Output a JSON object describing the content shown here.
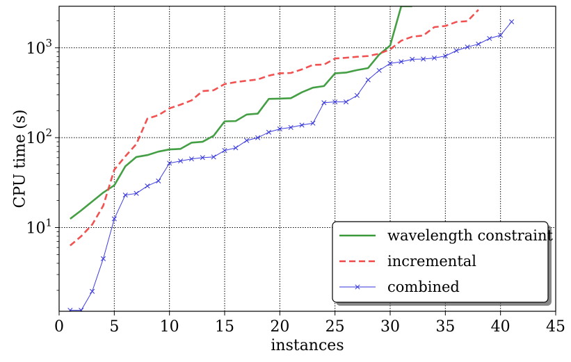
{
  "chart_data": {
    "type": "line",
    "title": "",
    "xlabel": "instances",
    "ylabel": "CPU time (s)",
    "xlim": [
      0,
      45
    ],
    "ylim": [
      1.17,
      2900
    ],
    "yscale": "log",
    "grid": true,
    "legend_position": "lower-right",
    "x_ticks": [
      0,
      5,
      10,
      15,
      20,
      25,
      30,
      35,
      40,
      45
    ],
    "y_ticks": [
      {
        "value": 10,
        "base": "10",
        "exp": "1"
      },
      {
        "value": 100,
        "base": "10",
        "exp": "2"
      },
      {
        "value": 1000,
        "base": "10",
        "exp": "3"
      }
    ],
    "series": [
      {
        "name": "wavelength constraint",
        "color": "#3a9a3a",
        "style": "solid",
        "marker": "none",
        "x": [
          1,
          2,
          3,
          4,
          5,
          6,
          7,
          8,
          9,
          10,
          11,
          12,
          13,
          14,
          15,
          16,
          17,
          18,
          19,
          20,
          21,
          22,
          23,
          24,
          25,
          26,
          27,
          28,
          29,
          30,
          31,
          32
        ],
        "y": [
          12.5,
          15.5,
          19.5,
          24.5,
          29.5,
          48,
          61,
          64,
          70,
          74,
          75,
          88,
          90,
          105,
          152,
          153,
          181,
          185,
          270,
          272,
          275,
          320,
          360,
          375,
          520,
          530,
          565,
          595,
          840,
          1060,
          2900,
          2900
        ]
      },
      {
        "name": "incremental",
        "color": "#f04848",
        "style": "dashed",
        "marker": "none",
        "x": [
          1,
          2,
          3,
          4,
          5,
          6,
          7,
          8,
          9,
          10,
          11,
          12,
          13,
          14,
          15,
          16,
          17,
          18,
          19,
          20,
          21,
          22,
          23,
          24,
          25,
          26,
          27,
          28,
          29,
          30,
          31,
          32,
          33,
          34,
          35,
          36,
          37,
          38
        ],
        "y": [
          6.3,
          8.0,
          10.8,
          17.5,
          44,
          62,
          85,
          163,
          178,
          212,
          233,
          260,
          330,
          337,
          395,
          415,
          430,
          445,
          490,
          520,
          525,
          575,
          645,
          650,
          760,
          775,
          795,
          810,
          860,
          960,
          1200,
          1330,
          1370,
          1700,
          1750,
          1940,
          1980,
          2650
        ]
      },
      {
        "name": "combined",
        "color": "#3333dd",
        "style": "solid",
        "marker": "x",
        "x": [
          1,
          2,
          3,
          4,
          5,
          6,
          7,
          8,
          9,
          10,
          11,
          12,
          13,
          14,
          15,
          16,
          17,
          18,
          19,
          20,
          21,
          22,
          23,
          24,
          25,
          26,
          27,
          28,
          29,
          30,
          31,
          32,
          33,
          34,
          35,
          36,
          37,
          38,
          39,
          40,
          41
        ],
        "y": [
          1.2,
          1.2,
          1.95,
          4.5,
          12.5,
          23,
          24,
          29,
          33,
          52,
          55,
          58,
          60,
          61,
          72,
          77,
          93,
          100,
          115,
          125,
          130,
          138,
          145,
          245,
          250,
          250,
          295,
          440,
          560,
          670,
          700,
          745,
          750,
          770,
          810,
          930,
          1020,
          1100,
          1270,
          1380,
          1950
        ]
      }
    ]
  }
}
